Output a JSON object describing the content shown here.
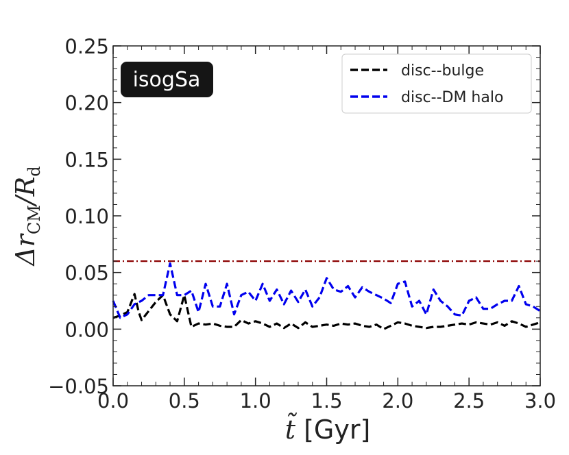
{
  "chart_data": {
    "type": "line",
    "title": "",
    "xlabel": "t̃ [Gyr]",
    "ylabel": "Δr_CM/R_d",
    "badge": "isogSa",
    "xlim": [
      0.0,
      3.0
    ],
    "ylim": [
      -0.05,
      0.25
    ],
    "x_ticks": [
      "0.0",
      "0.5",
      "1.0",
      "1.5",
      "2.0",
      "2.5",
      "3.0"
    ],
    "y_ticks": [
      "−0.05",
      "0.00",
      "0.05",
      "0.10",
      "0.15",
      "0.20",
      "0.25"
    ],
    "legend_position": "top-right",
    "threshold": {
      "y": 0.06,
      "color": "#8b0000",
      "style": "dash-dot"
    },
    "series": [
      {
        "name": "disc--bulge",
        "color": "#000000",
        "x": [
          0.0,
          0.05,
          0.1,
          0.15,
          0.18,
          0.2,
          0.25,
          0.3,
          0.35,
          0.4,
          0.45,
          0.5,
          0.55,
          0.6,
          0.65,
          0.7,
          0.75,
          0.8,
          0.85,
          0.9,
          0.95,
          1.0,
          1.05,
          1.1,
          1.15,
          1.2,
          1.25,
          1.3,
          1.35,
          1.4,
          1.45,
          1.5,
          1.55,
          1.6,
          1.65,
          1.7,
          1.75,
          1.8,
          1.85,
          1.9,
          1.95,
          2.0,
          2.05,
          2.1,
          2.15,
          2.2,
          2.25,
          2.3,
          2.35,
          2.4,
          2.45,
          2.5,
          2.55,
          2.6,
          2.65,
          2.7,
          2.75,
          2.8,
          2.85,
          2.9,
          2.95,
          3.0
        ],
        "y": [
          0.01,
          0.012,
          0.015,
          0.031,
          0.015,
          0.008,
          0.016,
          0.024,
          0.03,
          0.013,
          0.007,
          0.03,
          0.002,
          0.005,
          0.004,
          0.005,
          0.003,
          0.002,
          0.002,
          0.008,
          0.005,
          0.007,
          0.005,
          0.002,
          0.005,
          0.001,
          0.005,
          0.001,
          0.006,
          0.002,
          0.003,
          0.004,
          0.003,
          0.005,
          0.004,
          0.005,
          0.003,
          0.002,
          0.004,
          0.0,
          0.003,
          0.006,
          0.005,
          0.003,
          0.002,
          0.001,
          0.002,
          0.002,
          0.003,
          0.004,
          0.005,
          0.004,
          0.006,
          0.005,
          0.004,
          0.006,
          0.003,
          0.007,
          0.005,
          0.002,
          0.004,
          0.006
        ]
      },
      {
        "name": "disc--DM halo",
        "color": "#0000ee",
        "x": [
          0.0,
          0.05,
          0.1,
          0.15,
          0.2,
          0.25,
          0.3,
          0.35,
          0.4,
          0.45,
          0.5,
          0.55,
          0.6,
          0.65,
          0.7,
          0.75,
          0.8,
          0.85,
          0.9,
          0.95,
          1.0,
          1.05,
          1.1,
          1.15,
          1.2,
          1.25,
          1.3,
          1.35,
          1.4,
          1.45,
          1.5,
          1.55,
          1.6,
          1.65,
          1.7,
          1.75,
          1.8,
          1.85,
          1.9,
          1.95,
          2.0,
          2.05,
          2.1,
          2.15,
          2.2,
          2.25,
          2.3,
          2.35,
          2.4,
          2.45,
          2.5,
          2.55,
          2.6,
          2.65,
          2.7,
          2.75,
          2.8,
          2.85,
          2.9,
          2.95,
          3.0
        ],
        "y": [
          0.025,
          0.01,
          0.013,
          0.022,
          0.025,
          0.03,
          0.03,
          0.03,
          0.058,
          0.03,
          0.03,
          0.034,
          0.015,
          0.04,
          0.02,
          0.02,
          0.04,
          0.013,
          0.03,
          0.033,
          0.025,
          0.04,
          0.025,
          0.035,
          0.022,
          0.034,
          0.024,
          0.035,
          0.02,
          0.028,
          0.045,
          0.035,
          0.033,
          0.038,
          0.028,
          0.037,
          0.033,
          0.03,
          0.027,
          0.023,
          0.04,
          0.042,
          0.02,
          0.025,
          0.013,
          0.035,
          0.025,
          0.02,
          0.013,
          0.012,
          0.025,
          0.028,
          0.018,
          0.018,
          0.022,
          0.025,
          0.025,
          0.038,
          0.022,
          0.02,
          0.016
        ]
      }
    ]
  }
}
